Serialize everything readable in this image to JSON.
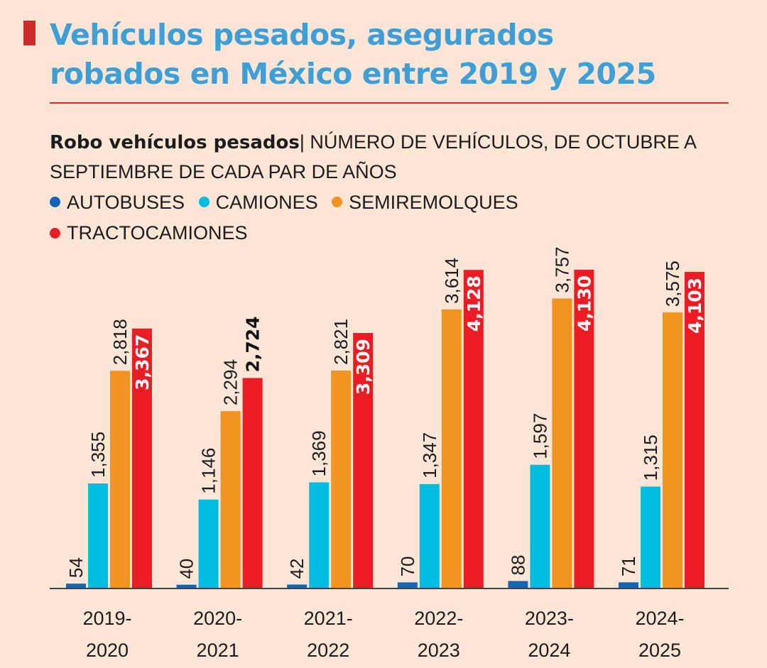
{
  "header": {
    "title_line1": "Vehículos pesados, asegurados",
    "title_line2": "robados en México entre 2019 y 2025",
    "accent_color": "#3d9fd6",
    "mark_color": "#cf2b2e"
  },
  "subtitle": {
    "bold": "Robo vehículos pesados",
    "separator": "|",
    "rest": " NÚMERO DE VEHÍCULOS, DE OCTUBRE A SEPTIEMBRE DE CADA PAR DE AÑOS"
  },
  "chart_data": {
    "type": "bar",
    "title": "Robo vehículos pesados",
    "subtitle": "NÚMERO DE VEHÍCULOS, DE OCTUBRE A SEPTIEMBRE DE CADA PAR DE AÑOS",
    "xlabel": "",
    "ylabel": "",
    "ylim": [
      0,
      4130
    ],
    "grid": false,
    "legend_position": "top-left",
    "categories": [
      [
        "2019-",
        "2020"
      ],
      [
        "2020-",
        "2021"
      ],
      [
        "2021-",
        "2022"
      ],
      [
        "2022-",
        "2023"
      ],
      [
        "2023-",
        "2024"
      ],
      [
        "2024-",
        "2025"
      ]
    ],
    "series": [
      {
        "name": "AUTOBUSES",
        "color": "#1565b5",
        "values": [
          54,
          40,
          42,
          70,
          88,
          71
        ],
        "labels": [
          "54",
          "40",
          "42",
          "70",
          "88",
          "71"
        ]
      },
      {
        "name": "CAMIONES",
        "color": "#00bde0",
        "values": [
          1355,
          1146,
          1369,
          1347,
          1597,
          1315
        ],
        "labels": [
          "1,355",
          "1,146",
          "1,369",
          "1,347",
          "1,597",
          "1,315"
        ]
      },
      {
        "name": "SEMIREMOLQUES",
        "color": "#f39321",
        "values": [
          2818,
          2294,
          2821,
          3614,
          3757,
          3575
        ],
        "labels": [
          "2,818",
          "2,294",
          "2,821",
          "3,614",
          "3,757",
          "3,575"
        ]
      },
      {
        "name": "TRACTOCAMIONES",
        "color": "#ec1c24",
        "values": [
          3367,
          2724,
          3309,
          4128,
          4130,
          4103
        ],
        "labels": [
          "3,367",
          "2,724",
          "3,309",
          "4,128",
          "4,130",
          "4,103"
        ]
      }
    ]
  }
}
